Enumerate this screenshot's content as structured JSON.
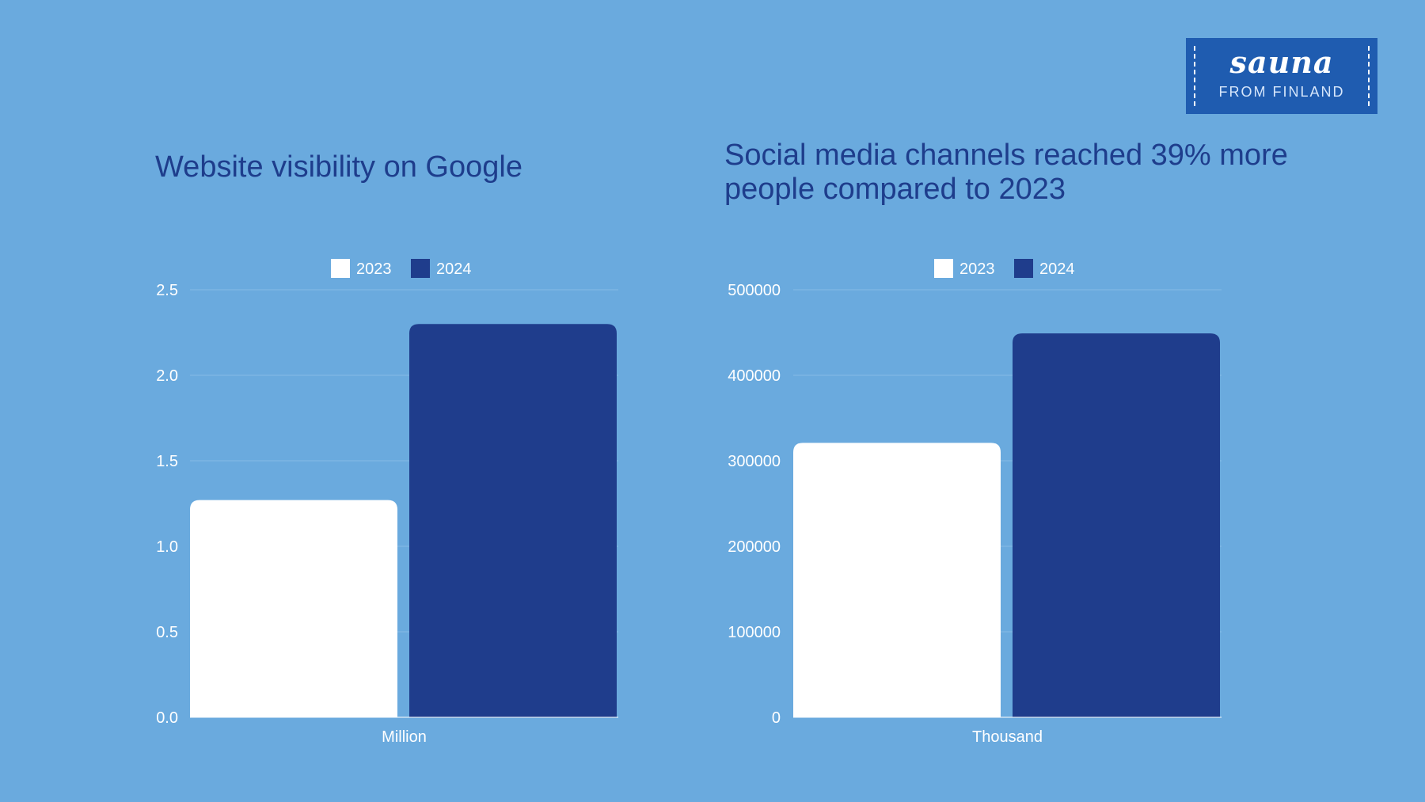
{
  "logo": {
    "wordmark": "sauna",
    "sub": "FROM FINLAND"
  },
  "colors": {
    "background": "#6aaade",
    "bar_2023": "#ffffff",
    "bar_2024": "#1f3d8c",
    "title": "#1e3d8c",
    "logo_bg": "#1f5cb0"
  },
  "chart_data": [
    {
      "type": "bar",
      "title": "Website visibility on Google",
      "categories": [
        "Million"
      ],
      "series": [
        {
          "name": "2023",
          "values": [
            1.27
          ]
        },
        {
          "name": "2024",
          "values": [
            2.3
          ]
        }
      ],
      "ylim": [
        0,
        2.5
      ],
      "yticks": [
        "0.0",
        "0.5",
        "1.0",
        "1.5",
        "2.0",
        "2.5"
      ],
      "legend": "top",
      "grid": true
    },
    {
      "type": "bar",
      "title": "Social media channels reached 39% more people compared to 2023",
      "categories": [
        "Thousand"
      ],
      "series": [
        {
          "name": "2023",
          "values": [
            321000
          ]
        },
        {
          "name": "2024",
          "values": [
            449000
          ]
        }
      ],
      "ylim": [
        0,
        500000
      ],
      "yticks": [
        "0",
        "100000",
        "200000",
        "300000",
        "400000",
        "500000"
      ],
      "legend": "top",
      "grid": true
    }
  ]
}
